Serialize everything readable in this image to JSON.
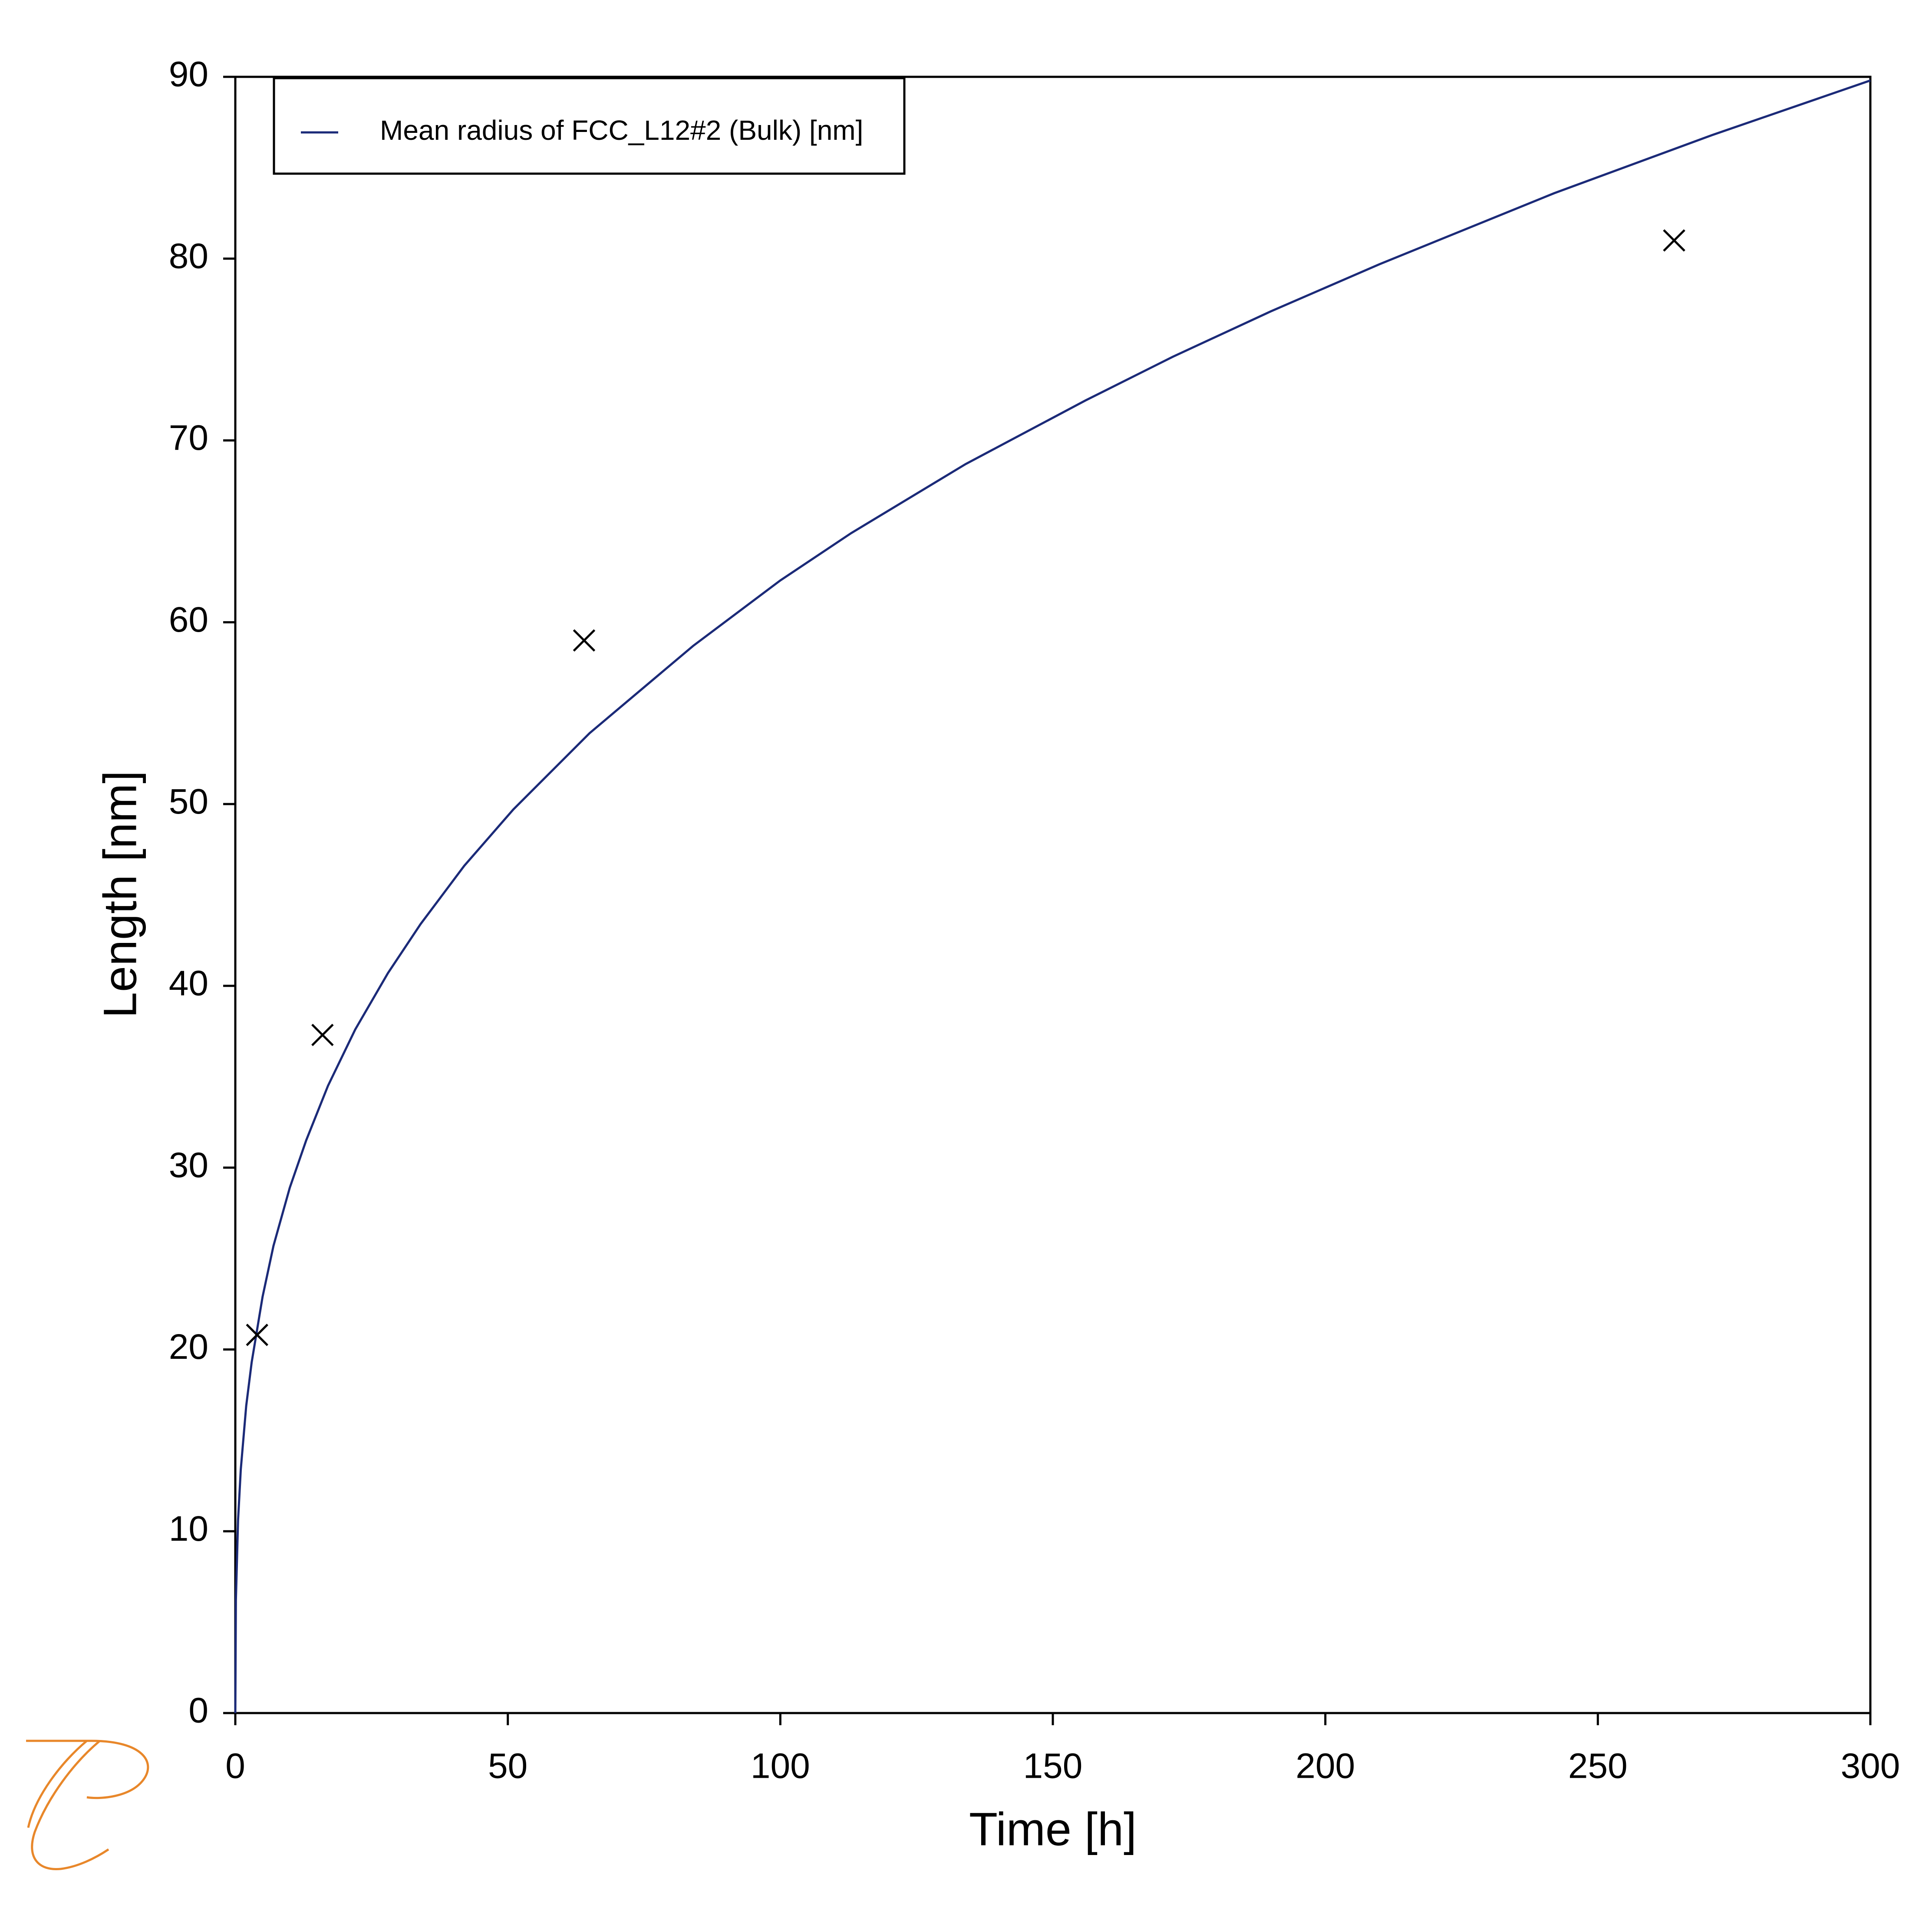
{
  "chart_data": {
    "type": "line",
    "xlabel": "Time [h]",
    "ylabel": "Length [nm]",
    "xlim": [
      0,
      300
    ],
    "ylim": [
      0,
      90
    ],
    "xticks": [
      0,
      50,
      100,
      150,
      200,
      250,
      300
    ],
    "yticks": [
      0,
      10,
      20,
      30,
      40,
      50,
      60,
      70,
      80,
      90
    ],
    "grid": false,
    "legend": "upper left",
    "series": [
      {
        "name": "Mean radius of FCC_L12#2 (Bulk) [nm]",
        "type": "line",
        "color": "#1b2a78",
        "x": [
          0,
          0.1,
          0.5,
          1,
          2,
          3,
          5,
          7,
          10,
          13,
          17,
          22,
          28,
          34,
          42,
          51,
          65,
          84,
          100,
          113,
          134,
          156,
          172,
          190,
          210,
          242,
          271,
          300
        ],
        "values": [
          0,
          6.2,
          10.6,
          13.4,
          16.9,
          19.3,
          22.9,
          25.7,
          28.9,
          31.5,
          34.5,
          37.6,
          40.7,
          43.4,
          46.6,
          49.7,
          53.9,
          58.7,
          62.3,
          64.9,
          68.7,
          72.2,
          74.6,
          77.1,
          79.7,
          83.6,
          86.8,
          89.8
        ]
      },
      {
        "type": "scatter",
        "marker": "x",
        "color": "#000000",
        "x": [
          4,
          16,
          64,
          264
        ],
        "values": [
          20.8,
          37.3,
          59,
          81
        ]
      }
    ]
  }
}
